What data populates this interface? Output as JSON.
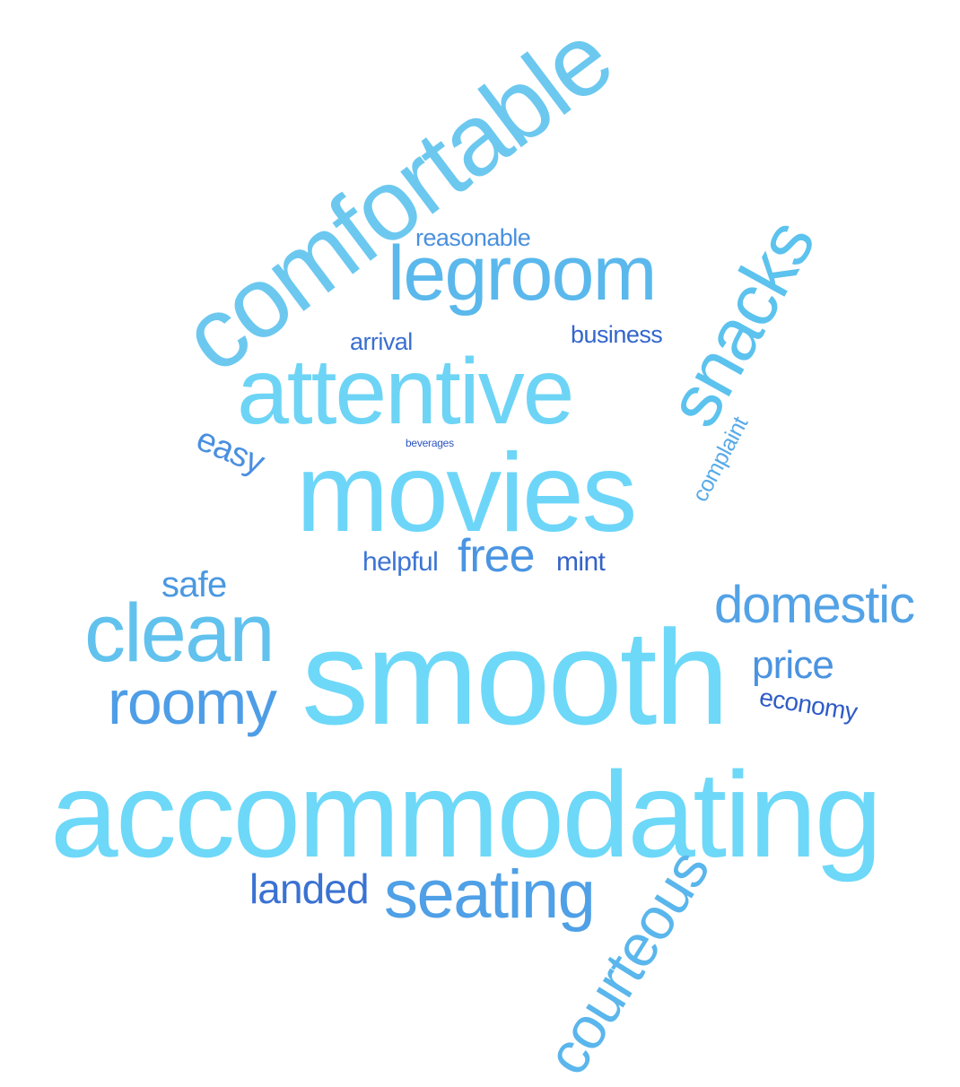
{
  "words": [
    {
      "text": "comfortable",
      "color": "#6cc8ef"
    },
    {
      "text": "legroom",
      "color": "#5ab8ec"
    },
    {
      "text": "reasonable",
      "color": "#4a90df"
    },
    {
      "text": "snacks",
      "color": "#5cc2ee"
    },
    {
      "text": "arrival",
      "color": "#3a6fcf"
    },
    {
      "text": "business",
      "color": "#3366cc"
    },
    {
      "text": "attentive",
      "color": "#6dd4f6"
    },
    {
      "text": "easy",
      "color": "#4a8fe0"
    },
    {
      "text": "beverages",
      "color": "#2c55c2"
    },
    {
      "text": "complaint",
      "color": "#58aae8"
    },
    {
      "text": "movies",
      "color": "#6dd6f8"
    },
    {
      "text": "helpful",
      "color": "#3d74d4"
    },
    {
      "text": "free",
      "color": "#4a95e2"
    },
    {
      "text": "mint",
      "color": "#3463c8"
    },
    {
      "text": "safe",
      "color": "#4b98e2"
    },
    {
      "text": "clean",
      "color": "#62c2ee"
    },
    {
      "text": "domestic",
      "color": "#53a2e6"
    },
    {
      "text": "price",
      "color": "#4a93e0"
    },
    {
      "text": "roomy",
      "color": "#4e9de6"
    },
    {
      "text": "smooth",
      "color": "#6ed8f8"
    },
    {
      "text": "economy",
      "color": "#2f5cc6"
    },
    {
      "text": "accommodating",
      "color": "#6ed8f8"
    },
    {
      "text": "landed",
      "color": "#3a72d2"
    },
    {
      "text": "seating",
      "color": "#4fa0e6"
    },
    {
      "text": "courteous",
      "color": "#5ab6ec"
    }
  ]
}
